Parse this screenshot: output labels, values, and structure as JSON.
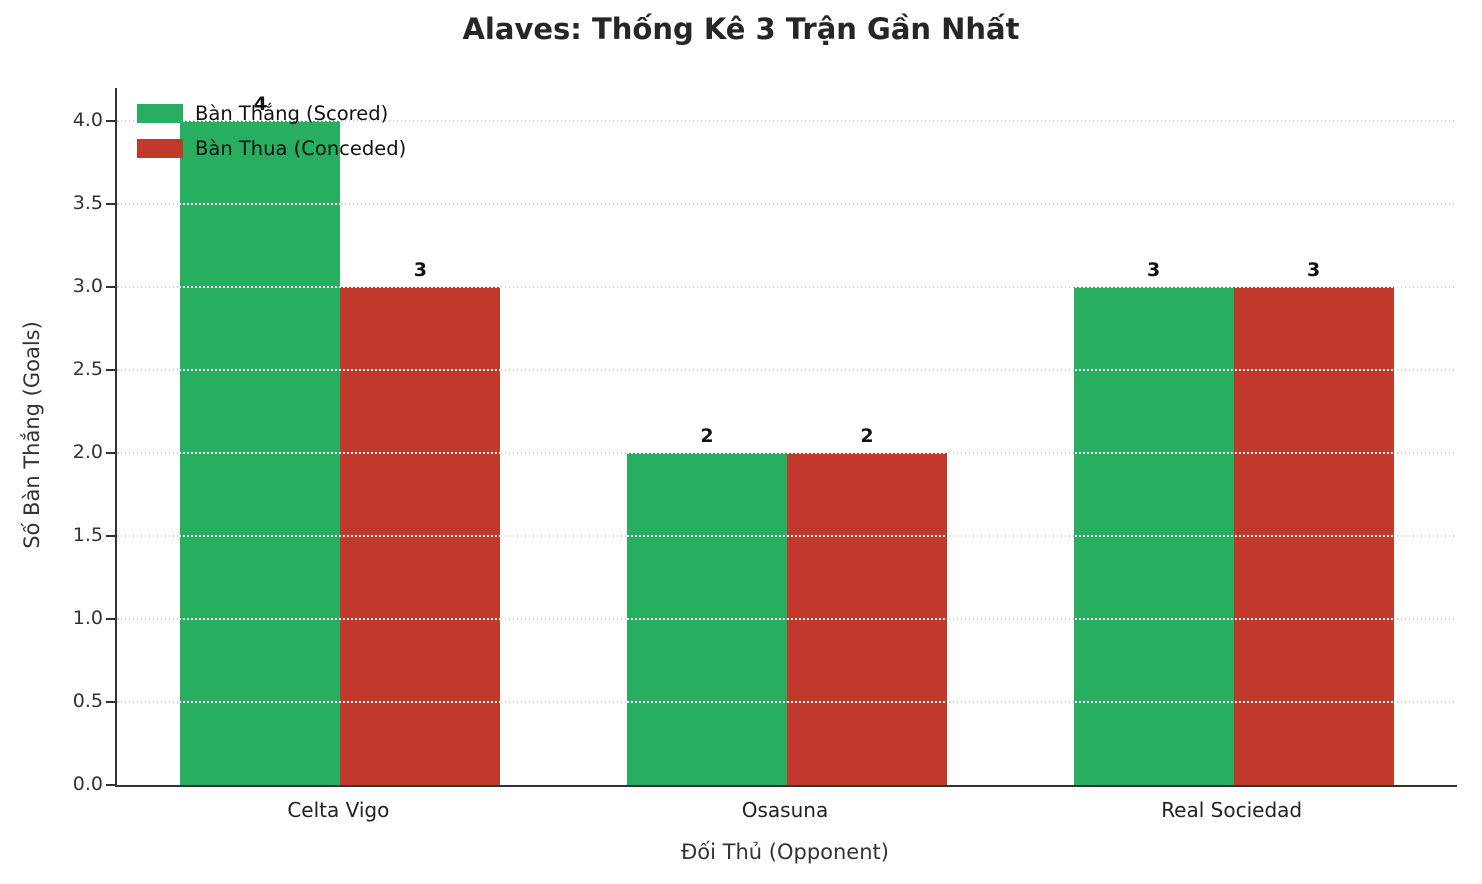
{
  "title": "Alaves: Thống Kê 3 Trận Gần Nhất",
  "chart_data": {
    "type": "bar",
    "categories": [
      "Celta Vigo",
      "Osasuna",
      "Real Sociedad"
    ],
    "series": [
      {
        "name": "Bàn Thắng (Scored)",
        "color": "#27ae60",
        "values": [
          4,
          2,
          3
        ]
      },
      {
        "name": "Bàn Thua (Conceded)",
        "color": "#c0392b",
        "values": [
          3,
          2,
          3
        ]
      }
    ],
    "bar_value_labels": [
      [
        "4",
        "2",
        "3"
      ],
      [
        "3",
        "2",
        "3"
      ]
    ],
    "xlabel": "Đối Thủ (Opponent)",
    "ylabel": "Số Bàn Thắng (Goals)",
    "ylim": [
      0,
      4.2
    ],
    "ytick_labels": [
      "0.0",
      "0.5",
      "1.0",
      "1.5",
      "2.0",
      "2.5",
      "3.0",
      "3.5",
      "4.0"
    ],
    "yticks": [
      0,
      0.5,
      1,
      1.5,
      2,
      2.5,
      3,
      3.5,
      4
    ],
    "grid": "dotted",
    "legend_position": "upper-left"
  }
}
